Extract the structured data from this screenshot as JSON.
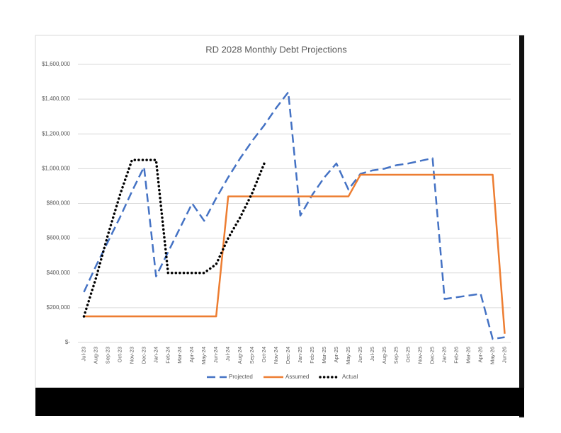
{
  "chart_data": {
    "type": "line",
    "title": "RD 2028 Monthly Debt Projections",
    "categories": [
      "Jul-23",
      "Aug-23",
      "Sep-23",
      "Oct-23",
      "Nov-23",
      "Dec-23",
      "Jan-24",
      "Feb-24",
      "Mar-24",
      "Apr-24",
      "May-24",
      "Jun-24",
      "Jul-24",
      "Aug-24",
      "Sep-24",
      "Oct-24",
      "Nov-24",
      "Dec-24",
      "Jan-25",
      "Feb-25",
      "Mar-25",
      "Apr-25",
      "May-25",
      "Jun-25",
      "Jul-25",
      "Aug-25",
      "Sep-25",
      "Oct-25",
      "Nov-25",
      "Dec-25",
      "Jan-26",
      "Feb-26",
      "Mar-26",
      "Apr-26",
      "May-26",
      "Jun-26"
    ],
    "series": [
      {
        "name": "Projected",
        "color": "#4472c4",
        "dash": "dashed",
        "values": [
          290000,
          440000,
          580000,
          720000,
          870000,
          1010000,
          380000,
          520000,
          660000,
          800000,
          700000,
          830000,
          950000,
          1060000,
          1160000,
          1250000,
          1350000,
          1440000,
          730000,
          850000,
          950000,
          1030000,
          880000,
          970000,
          990000,
          1000000,
          1020000,
          1030000,
          1045000,
          1060000,
          250000,
          260000,
          270000,
          280000,
          20000,
          30000
        ]
      },
      {
        "name": "Assumed",
        "color": "#ed7d31",
        "dash": "solid",
        "values": [
          150000,
          150000,
          150000,
          150000,
          150000,
          150000,
          150000,
          150000,
          150000,
          150000,
          150000,
          150000,
          840000,
          840000,
          840000,
          840000,
          840000,
          840000,
          840000,
          840000,
          840000,
          840000,
          840000,
          965000,
          965000,
          965000,
          965000,
          965000,
          965000,
          965000,
          965000,
          965000,
          965000,
          965000,
          965000,
          50000
        ]
      },
      {
        "name": "Actual",
        "color": "#000000",
        "dash": "dotted",
        "values": [
          150000,
          370000,
          620000,
          850000,
          1050000,
          1050000,
          1050000,
          400000,
          400000,
          400000,
          400000,
          450000,
          600000,
          720000,
          860000,
          1030000,
          null,
          null,
          null,
          null,
          null,
          null,
          null,
          null,
          null,
          null,
          null,
          null,
          null,
          null,
          null,
          null,
          null,
          null,
          null,
          null
        ]
      }
    ],
    "ylim": [
      0,
      1600000
    ],
    "yticks": [
      {
        "value": 0,
        "label": "$-"
      },
      {
        "value": 200000,
        "label": "$200,000"
      },
      {
        "value": 400000,
        "label": "$400,000"
      },
      {
        "value": 600000,
        "label": "$600,000"
      },
      {
        "value": 800000,
        "label": "$800,000"
      },
      {
        "value": 1000000,
        "label": "$1,000,000"
      },
      {
        "value": 1200000,
        "label": "$1,200,000"
      },
      {
        "value": 1400000,
        "label": "$1,400,000"
      },
      {
        "value": 1600000,
        "label": "$1,600,000"
      }
    ],
    "grid": true,
    "legend": "bottom"
  }
}
